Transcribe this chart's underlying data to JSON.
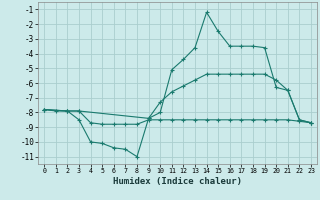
{
  "xlabel": "Humidex (Indice chaleur)",
  "background_color": "#cceaea",
  "grid_color": "#aacece",
  "line_color": "#1a7a6e",
  "xlim": [
    -0.5,
    23.5
  ],
  "ylim": [
    -11.5,
    -0.5
  ],
  "yticks": [
    -11,
    -10,
    -9,
    -8,
    -7,
    -6,
    -5,
    -4,
    -3,
    -2,
    -1
  ],
  "xticks": [
    0,
    1,
    2,
    3,
    4,
    5,
    6,
    7,
    8,
    9,
    10,
    11,
    12,
    13,
    14,
    15,
    16,
    17,
    18,
    19,
    20,
    21,
    22,
    23
  ],
  "line1_x": [
    0,
    1,
    2,
    3,
    4,
    5,
    6,
    7,
    8,
    9,
    10,
    11,
    12,
    13,
    14,
    15,
    16,
    17,
    18,
    19,
    20,
    21,
    22,
    23
  ],
  "line1_y": [
    -7.8,
    -7.9,
    -7.9,
    -8.5,
    -10.0,
    -10.1,
    -10.4,
    -10.5,
    -11.0,
    -8.4,
    -8.0,
    -5.1,
    -4.4,
    -3.6,
    -1.2,
    -2.5,
    -3.5,
    -3.5,
    -3.5,
    -3.6,
    -6.3,
    -6.5,
    -8.5,
    -8.7
  ],
  "line2_x": [
    0,
    2,
    3,
    9,
    10,
    11,
    12,
    13,
    14,
    15,
    16,
    17,
    18,
    19,
    20,
    21,
    22,
    23
  ],
  "line2_y": [
    -7.8,
    -7.9,
    -7.9,
    -8.4,
    -7.3,
    -6.6,
    -6.2,
    -5.8,
    -5.4,
    -5.4,
    -5.4,
    -5.4,
    -5.4,
    -5.4,
    -5.8,
    -6.5,
    -8.5,
    -8.7
  ],
  "line3_x": [
    0,
    2,
    3,
    4,
    5,
    6,
    7,
    8,
    9,
    10,
    11,
    12,
    13,
    14,
    15,
    16,
    17,
    18,
    19,
    20,
    21,
    22,
    23
  ],
  "line3_y": [
    -7.8,
    -7.9,
    -7.9,
    -8.7,
    -8.8,
    -8.8,
    -8.8,
    -8.8,
    -8.5,
    -8.5,
    -8.5,
    -8.5,
    -8.5,
    -8.5,
    -8.5,
    -8.5,
    -8.5,
    -8.5,
    -8.5,
    -8.5,
    -8.5,
    -8.6,
    -8.7
  ]
}
